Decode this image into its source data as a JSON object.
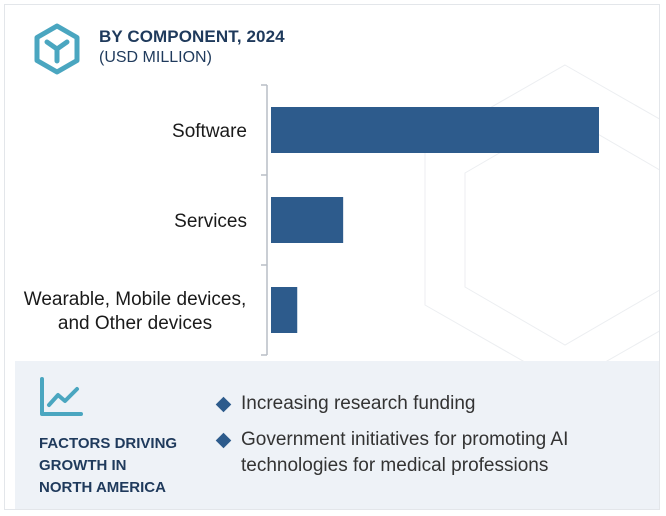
{
  "header": {
    "title": "BY COMPONENT, 2024",
    "subtitle": "(USD MILLION)",
    "logo_icon": "cube-y-hexagon-icon"
  },
  "chart_data": {
    "type": "bar",
    "orientation": "horizontal",
    "categories": [
      "Software",
      "Services",
      "Wearable, Mobile devices, and Other devices"
    ],
    "category_lines": [
      [
        "Software"
      ],
      [
        "Services"
      ],
      [
        "Wearable, Mobile devices,",
        "and Other devices"
      ]
    ],
    "values": [
      100,
      22,
      8
    ],
    "xlim": [
      0,
      100
    ],
    "bar_color": "#2d5b8c",
    "grid": false,
    "title": "",
    "xlabel": "",
    "ylabel": ""
  },
  "factors": {
    "icon": "trend-line-chart-icon",
    "heading_lines": [
      "FACTORS DRIVING",
      "GROWTH IN",
      "NORTH AMERICA"
    ],
    "items": [
      "Increasing research funding",
      "Government initiatives for promoting AI technologies for medical professions"
    ]
  },
  "colors": {
    "accent": "#2d5b8c",
    "heading": "#1f3a5c",
    "icon_teal": "#4aa6c0",
    "panel_bg": "#eef2f7"
  }
}
